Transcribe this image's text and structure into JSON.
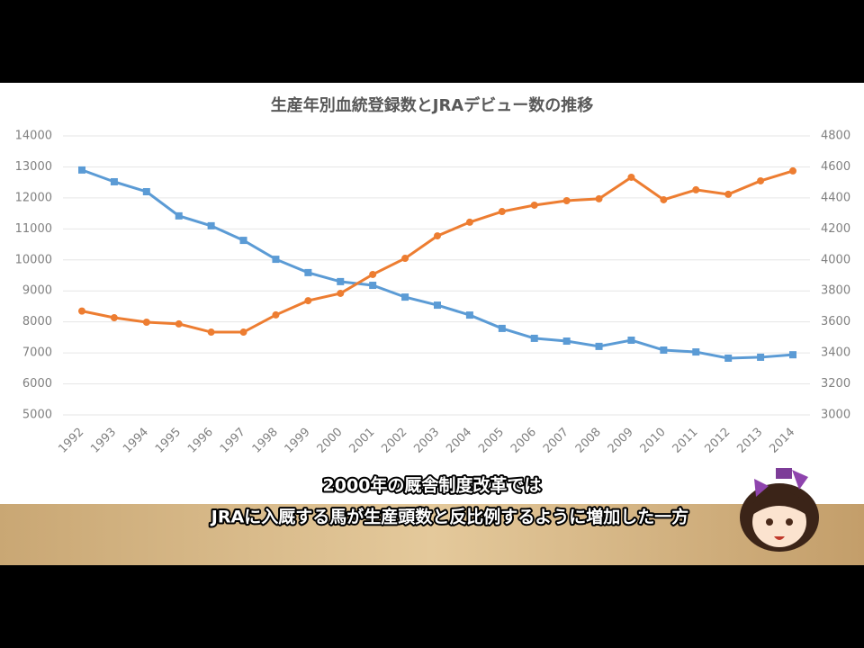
{
  "chart_data": {
    "type": "line",
    "title": "生産年別血統登録数とJRAデビュー数の推移",
    "categories": [
      "1992",
      "1993",
      "1994",
      "1995",
      "1996",
      "1997",
      "1998",
      "1999",
      "2000",
      "2001",
      "2002",
      "2003",
      "2004",
      "2005",
      "2006",
      "2007",
      "2008",
      "2009",
      "2010",
      "2011",
      "2012",
      "2013",
      "2014"
    ],
    "series": [
      {
        "color": "#5b9bd5",
        "values": [
          12900,
          12520,
          12200,
          11420,
          11100,
          10630,
          10020,
          9590,
          9300,
          9180,
          8800,
          8540,
          8220,
          7790,
          7470,
          7380,
          7210,
          7410,
          7090,
          7030,
          6830,
          6860,
          6940
        ]
      },
      {
        "color": "#ed7d31",
        "axis": "y2",
        "values": [
          3670,
          3627,
          3598,
          3587,
          3534,
          3534,
          3645,
          3737,
          3784,
          3906,
          4010,
          4155,
          4243,
          4312,
          4353,
          4382,
          4394,
          4533,
          4388,
          4452,
          4423,
          4510,
          4574
        ]
      }
    ],
    "ylim": [
      5000,
      14000
    ],
    "yticks": [
      5000,
      6000,
      7000,
      8000,
      9000,
      10000,
      11000,
      12000,
      13000,
      14000
    ],
    "y2lim": [
      3000,
      4800
    ],
    "y2ticks": [
      3000,
      3200,
      3400,
      3600,
      3800,
      4000,
      4200,
      4400,
      4600,
      4800
    ],
    "grid": true
  },
  "subtitles": [
    "2000年の厩舎制度改革では",
    "JRAに入厩する馬が生産頭数と反比例するように増加した一方"
  ]
}
